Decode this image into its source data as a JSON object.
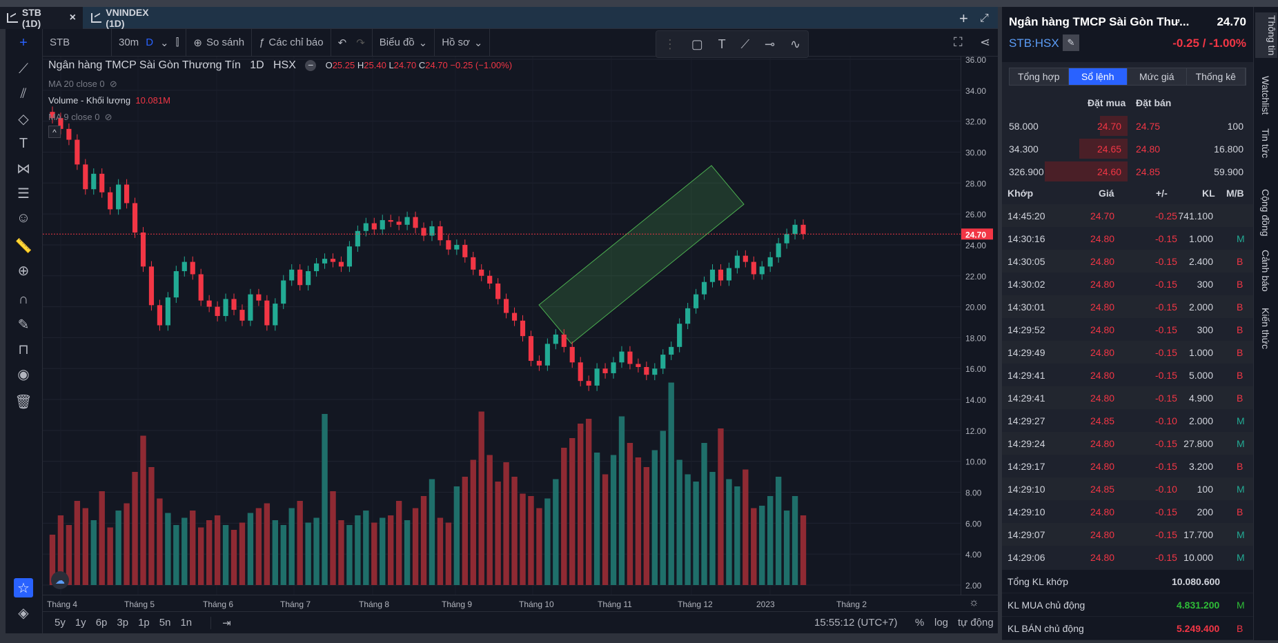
{
  "tabs": [
    {
      "label": "STB (1D)",
      "close": "×"
    },
    {
      "label": "VNINDEX (1D)"
    }
  ],
  "toolbar": {
    "symbol": "STB",
    "interval": "30m",
    "interval_active": "D",
    "compare": "So sánh",
    "indicators": "Các chỉ báo",
    "chart_type": "Biểu đồ",
    "profile": "Hồ sơ"
  },
  "legend": {
    "name": "Ngân hàng TMCP Sài Gòn Thương Tín",
    "tf": "1D",
    "exchange": "HSX",
    "o_label": "O",
    "o": "25.25",
    "h_label": "H",
    "h": "25.40",
    "l_label": "L",
    "l": "24.70",
    "c_label": "C",
    "c": "24.70",
    "change": "−0.25 (−1.00%)",
    "ma": "MA 20 close 0",
    "volume_label": "Volume - Khối lượng",
    "volume": "10.081M",
    "ma_vol": "MA 9 close 0"
  },
  "chart_data": {
    "type": "candlestick",
    "y_ticks": [
      "36.00",
      "34.00",
      "32.00",
      "30.00",
      "28.00",
      "26.00",
      "24.00",
      "22.00",
      "20.00",
      "18.00",
      "16.00",
      "14.00",
      "12.00",
      "10.00",
      "8.00",
      "6.00",
      "4.00",
      "2.00"
    ],
    "x_ticks": [
      "Tháng 4",
      "Tháng 5",
      "Tháng 6",
      "Tháng 7",
      "Tháng 8",
      "Tháng 9",
      "Tháng 10",
      "Tháng 11",
      "Tháng 12",
      "2023",
      "Tháng 2"
    ],
    "last_price": "24.70",
    "ylim": [
      2,
      36
    ],
    "colors": {
      "up": "#22ab94",
      "down": "#f23645"
    },
    "close_series": [
      32.2,
      31.5,
      30.8,
      29.2,
      27.6,
      28.6,
      27.4,
      26.3,
      27.9,
      26.7,
      24.8,
      22.6,
      20.1,
      18.8,
      20.6,
      22.3,
      22.9,
      22.1,
      20.4,
      20.0,
      19.4,
      20.5,
      19.8,
      19.1,
      20.8,
      20.4,
      18.8,
      20.2,
      21.7,
      22.4,
      21.4,
      22.3,
      22.8,
      23.1,
      22.9,
      22.6,
      23.9,
      24.9,
      25.4,
      25.0,
      25.6,
      25.5,
      25.3,
      25.8,
      25.1,
      24.6,
      25.2,
      24.3,
      23.7,
      24.0,
      23.2,
      22.4,
      22.0,
      21.5,
      20.5,
      19.6,
      19.1,
      18.1,
      16.5,
      16.2,
      17.6,
      18.2,
      17.4,
      16.4,
      15.2,
      14.9,
      16.0,
      15.7,
      16.4,
      17.1,
      16.3,
      16.1,
      15.6,
      16.0,
      16.9,
      17.4,
      18.9,
      19.9,
      20.8,
      21.6,
      22.4,
      21.7,
      22.5,
      23.3,
      22.9,
      22.1,
      22.6,
      23.2,
      24.1,
      24.7,
      25.3,
      24.7
    ],
    "volume_series": [
      3.8,
      4.6,
      4.2,
      5.2,
      4.9,
      4.4,
      5.6,
      4.1,
      4.8,
      5.1,
      6.4,
      7.9,
      6.6,
      5.3,
      4.7,
      4.2,
      4.5,
      4.8,
      4.1,
      4.4,
      4.6,
      4.2,
      4.0,
      4.3,
      4.7,
      4.9,
      5.1,
      4.4,
      4.2,
      4.9,
      5.2,
      4.3,
      4.5,
      8.8,
      5.6,
      4.4,
      4.2,
      4.6,
      4.8,
      4.3,
      4.5,
      4.6,
      5.2,
      4.4,
      4.9,
      5.4,
      6.1,
      4.5,
      4.3,
      5.8,
      6.2,
      6.9,
      8.9,
      7.1,
      6.0,
      6.8,
      6.2,
      5.5,
      5.4,
      4.9,
      5.3,
      6.1,
      7.4,
      7.8,
      8.4,
      8.6,
      7.2,
      6.3,
      7.1,
      8.7,
      7.6,
      7.0,
      6.6,
      7.3,
      8.1,
      10.1,
      6.9,
      6.3,
      6.0,
      7.6,
      6.4,
      8.2,
      6.1,
      5.8,
      6.5,
      4.9,
      5.0,
      5.4,
      6.2,
      4.8,
      5.4,
      4.6
    ]
  },
  "time_display": "15:55:12 (UTC+7)",
  "bottom": {
    "ranges": [
      "5y",
      "1y",
      "6p",
      "3p",
      "1p",
      "5n",
      "1n"
    ],
    "pct": "%",
    "log": "log",
    "auto": "tự động"
  },
  "right": {
    "title": "Ngân hàng TMCP Sài Gòn Thư...",
    "price": "24.70",
    "symbol": "STB:HSX",
    "change": "-0.25 / -1.00%",
    "tabs": [
      "Tổng hợp",
      "Sổ lệnh",
      "Mức giá",
      "Thống kê"
    ],
    "ob_buy": "Đặt mua",
    "ob_sell": "Đặt bán",
    "orderbook": [
      {
        "bvol": "58.000",
        "bid": "24.70",
        "ask": "24.75",
        "avol": "100"
      },
      {
        "bvol": "34.300",
        "bid": "24.65",
        "ask": "24.80",
        "avol": "16.800"
      },
      {
        "bvol": "326.900",
        "bid": "24.60",
        "ask": "24.85",
        "avol": "59.900"
      }
    ],
    "trades_header": {
      "time": "Khớp",
      "price": "Giá",
      "chg": "+/-",
      "vol": "KL",
      "side": "M/B"
    },
    "trades": [
      {
        "time": "14:45:20",
        "price": "24.70",
        "chg": "-0.25",
        "vol": "741.100",
        "side": ""
      },
      {
        "time": "14:30:16",
        "price": "24.80",
        "chg": "-0.15",
        "vol": "1.000",
        "side": "M"
      },
      {
        "time": "14:30:05",
        "price": "24.80",
        "chg": "-0.15",
        "vol": "2.400",
        "side": "B"
      },
      {
        "time": "14:30:02",
        "price": "24.80",
        "chg": "-0.15",
        "vol": "300",
        "side": "B"
      },
      {
        "time": "14:30:01",
        "price": "24.80",
        "chg": "-0.15",
        "vol": "2.000",
        "side": "B"
      },
      {
        "time": "14:29:52",
        "price": "24.80",
        "chg": "-0.15",
        "vol": "300",
        "side": "B"
      },
      {
        "time": "14:29:49",
        "price": "24.80",
        "chg": "-0.15",
        "vol": "1.000",
        "side": "B"
      },
      {
        "time": "14:29:41",
        "price": "24.80",
        "chg": "-0.15",
        "vol": "5.000",
        "side": "B"
      },
      {
        "time": "14:29:41",
        "price": "24.80",
        "chg": "-0.15",
        "vol": "4.900",
        "side": "B"
      },
      {
        "time": "14:29:27",
        "price": "24.85",
        "chg": "-0.10",
        "vol": "2.000",
        "side": "M"
      },
      {
        "time": "14:29:24",
        "price": "24.80",
        "chg": "-0.15",
        "vol": "27.800",
        "side": "M"
      },
      {
        "time": "14:29:17",
        "price": "24.80",
        "chg": "-0.15",
        "vol": "3.200",
        "side": "B"
      },
      {
        "time": "14:29:10",
        "price": "24.85",
        "chg": "-0.10",
        "vol": "100",
        "side": "M"
      },
      {
        "time": "14:29:10",
        "price": "24.80",
        "chg": "-0.15",
        "vol": "200",
        "side": "B"
      },
      {
        "time": "14:29:07",
        "price": "24.80",
        "chg": "-0.15",
        "vol": "17.700",
        "side": "M"
      },
      {
        "time": "14:29:06",
        "price": "24.80",
        "chg": "-0.15",
        "vol": "10.000",
        "side": "M"
      }
    ],
    "total_label": "Tổng KL khớp",
    "total": "10.080.600",
    "buy_label": "KL MUA chủ động",
    "buy": "4.831.200",
    "buy_side": "M",
    "sell_label": "KL BÁN chủ động",
    "sell": "5.249.400",
    "sell_side": "B"
  },
  "vertical_tabs": [
    "Thông tin",
    "Watchlist",
    "Tin tức",
    "Cộng đồng",
    "Cảnh báo",
    "Kiến thức"
  ]
}
